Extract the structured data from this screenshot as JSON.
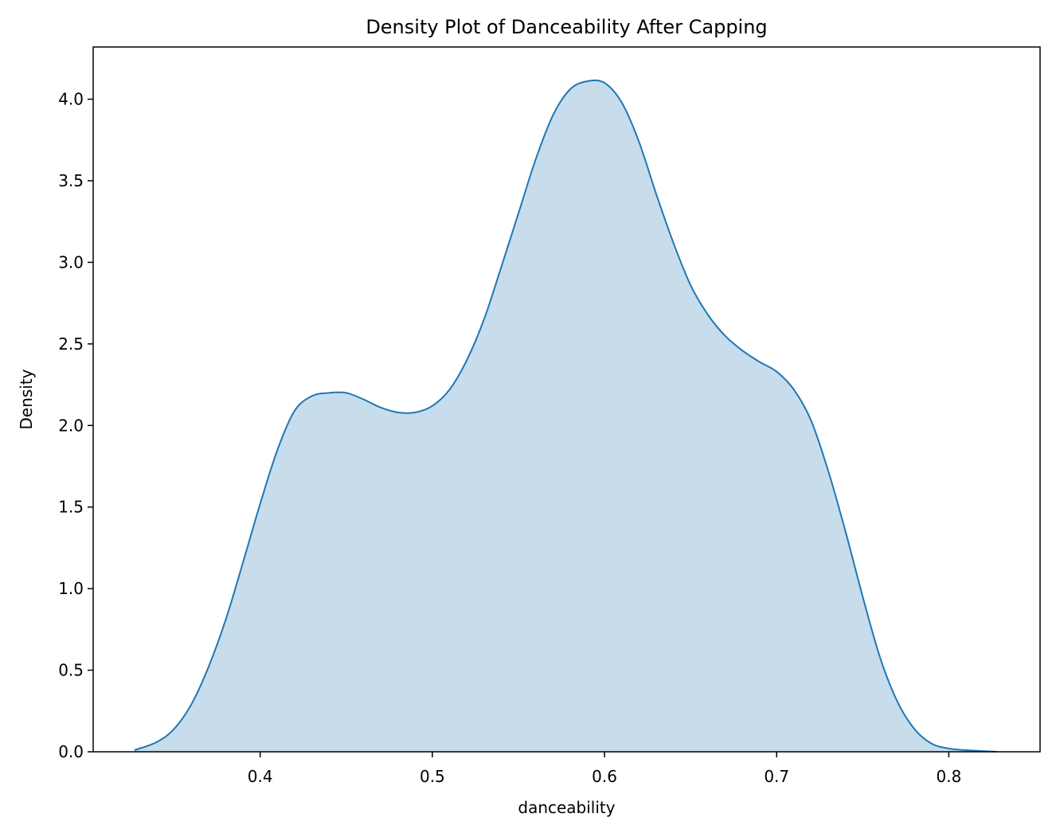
{
  "chart_data": {
    "type": "area",
    "title": "Density Plot of Danceability After Capping",
    "xlabel": "danceability",
    "ylabel": "Density",
    "xlim": [
      0.303,
      0.853
    ],
    "ylim": [
      0.0,
      4.32
    ],
    "xticks": [
      0.4,
      0.5,
      0.6,
      0.7,
      0.8
    ],
    "xtick_labels": [
      "0.4",
      "0.5",
      "0.6",
      "0.7",
      "0.8"
    ],
    "yticks": [
      0.0,
      0.5,
      1.0,
      1.5,
      2.0,
      2.5,
      3.0,
      3.5,
      4.0
    ],
    "ytick_labels": [
      "0.0",
      "0.5",
      "1.0",
      "1.5",
      "2.0",
      "2.5",
      "3.0",
      "3.5",
      "4.0"
    ],
    "grid": false,
    "legend": "none",
    "colors": {
      "line": "#1f77b4",
      "fill": "#1f77b4",
      "fill_opacity": 0.25
    },
    "series": [
      {
        "x": [
          0.327,
          0.34,
          0.35,
          0.36,
          0.37,
          0.38,
          0.39,
          0.4,
          0.41,
          0.42,
          0.43,
          0.44,
          0.45,
          0.46,
          0.47,
          0.48,
          0.49,
          0.5,
          0.51,
          0.52,
          0.53,
          0.54,
          0.55,
          0.56,
          0.57,
          0.58,
          0.59,
          0.6,
          0.61,
          0.62,
          0.63,
          0.64,
          0.65,
          0.66,
          0.67,
          0.68,
          0.69,
          0.7,
          0.71,
          0.72,
          0.73,
          0.74,
          0.75,
          0.76,
          0.77,
          0.78,
          0.79,
          0.8,
          0.81,
          0.828
        ],
        "y": [
          0.01,
          0.06,
          0.14,
          0.29,
          0.52,
          0.81,
          1.16,
          1.52,
          1.85,
          2.09,
          2.18,
          2.2,
          2.2,
          2.16,
          2.11,
          2.08,
          2.08,
          2.12,
          2.22,
          2.4,
          2.65,
          2.97,
          3.3,
          3.63,
          3.9,
          4.06,
          4.11,
          4.1,
          3.98,
          3.74,
          3.42,
          3.12,
          2.86,
          2.68,
          2.55,
          2.46,
          2.39,
          2.33,
          2.22,
          2.03,
          1.72,
          1.35,
          0.95,
          0.58,
          0.31,
          0.14,
          0.05,
          0.02,
          0.01,
          0.0
        ]
      }
    ]
  }
}
